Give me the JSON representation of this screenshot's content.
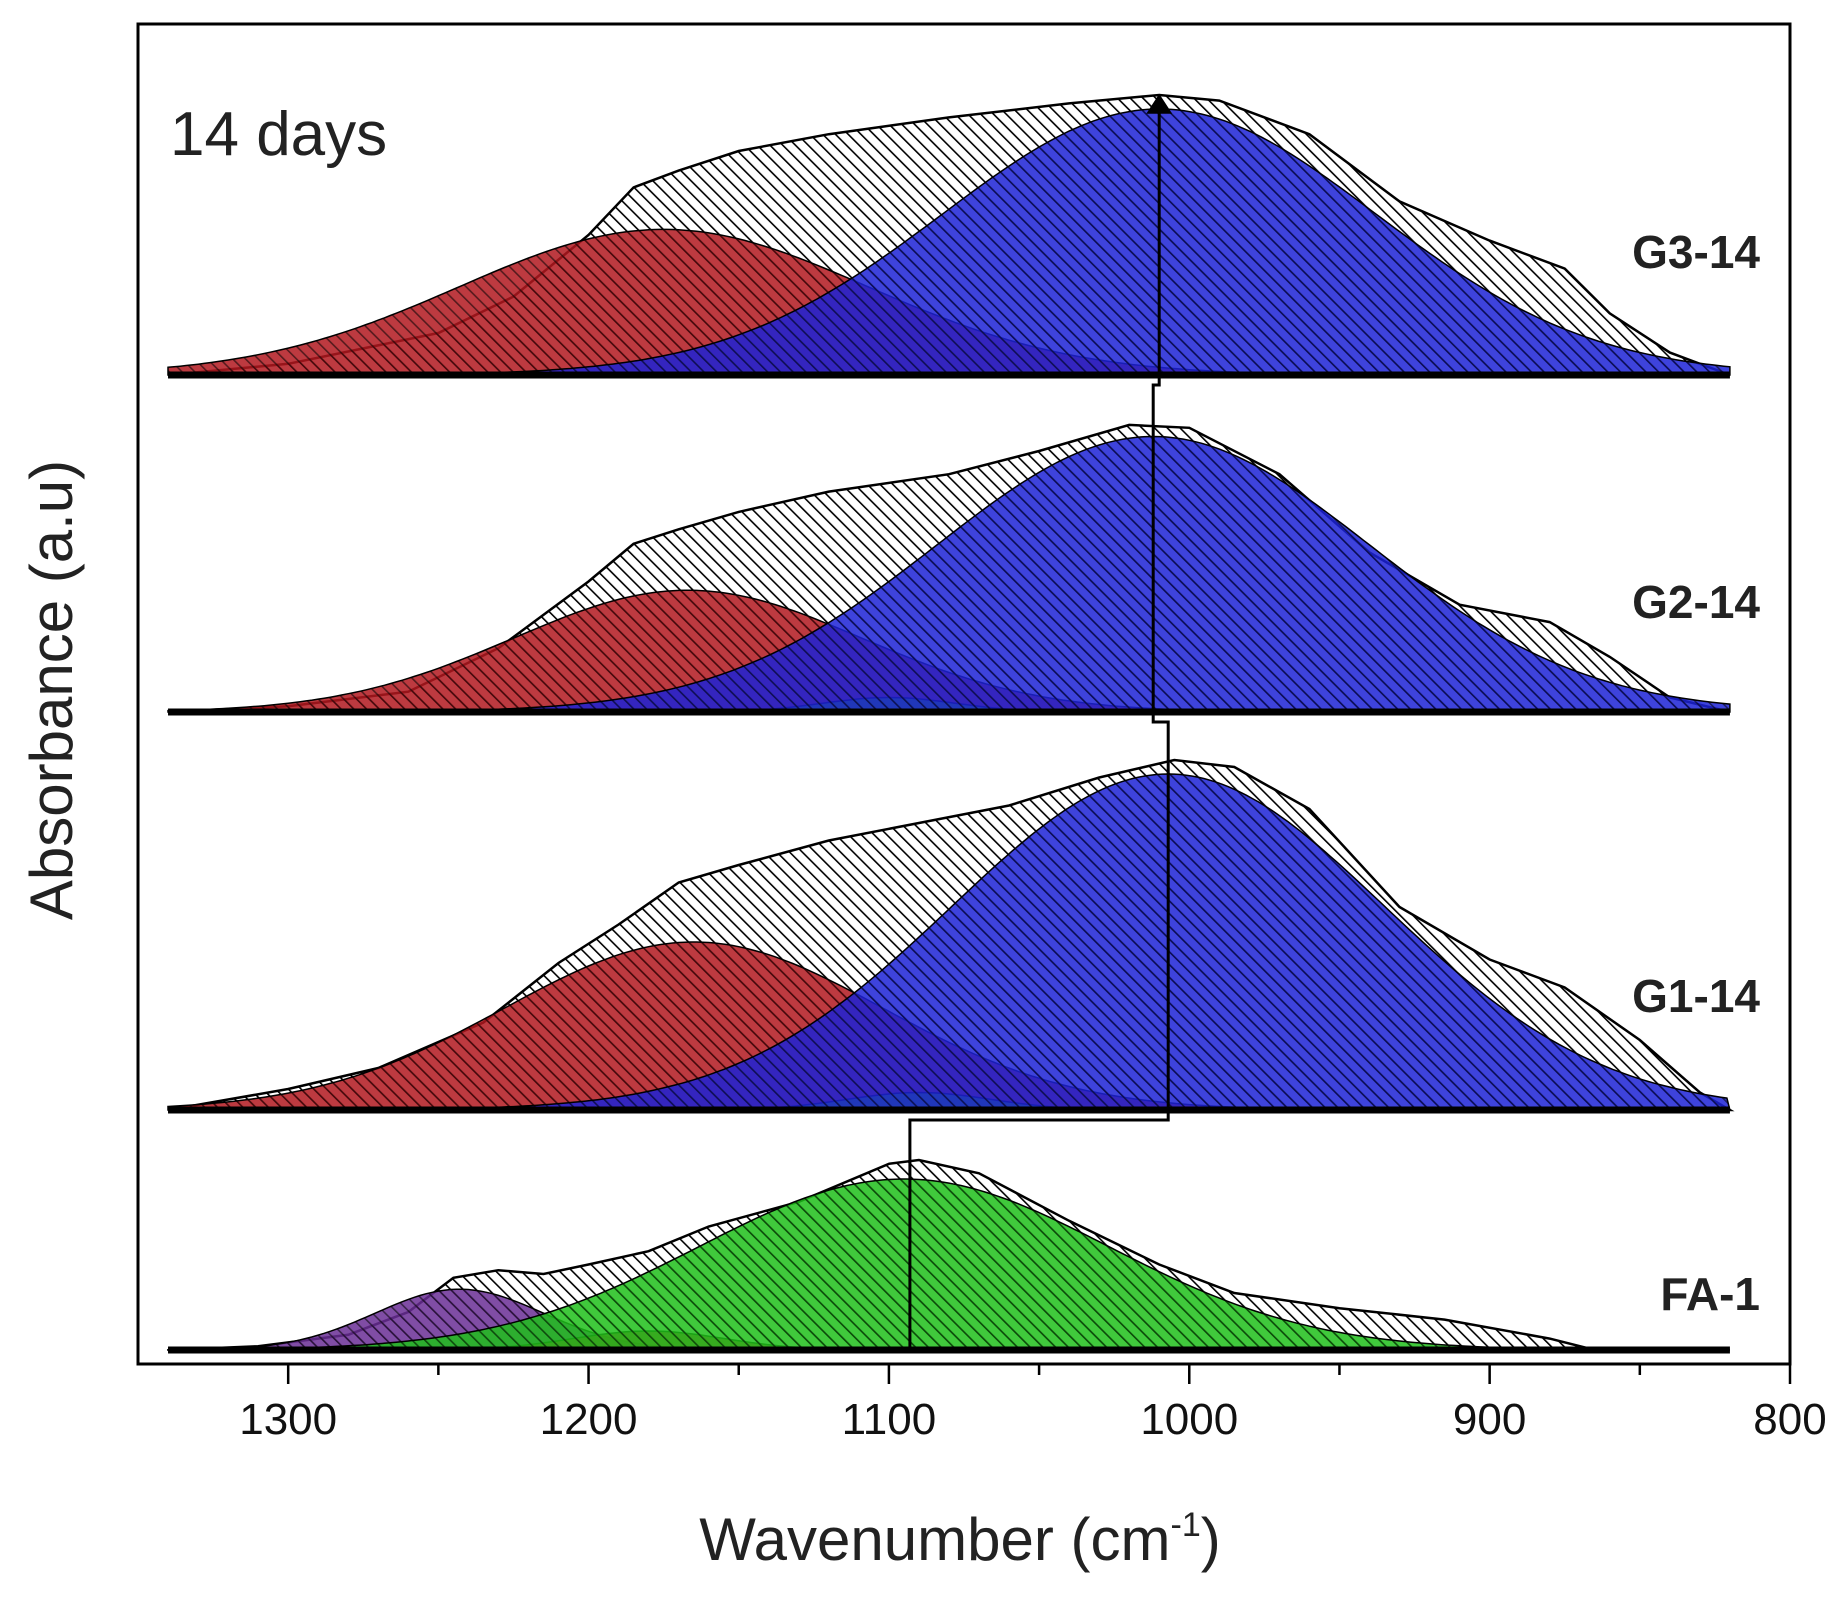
{
  "chart_data": {
    "type": "area",
    "title": "",
    "annotation": "14 days",
    "xlabel": "Wavenumber (cm",
    "xlabel_sup": "-1",
    "xlabel_close": ")",
    "ylabel": "Absorbance (a.u)",
    "xlim": [
      1350,
      800
    ],
    "x_reversed": true,
    "xticks": [
      {
        "value": 1300,
        "label": "1300"
      },
      {
        "value": 1200,
        "label": "1200"
      },
      {
        "value": 1100,
        "label": "1100"
      },
      {
        "value": 1000,
        "label": "1000"
      },
      {
        "value": 900,
        "label": "900"
      },
      {
        "value": 800,
        "label": "800"
      }
    ],
    "minor_xticks": [
      1250,
      1150,
      1050,
      950,
      850
    ],
    "grid": false,
    "series": [
      {
        "name": "G3-14",
        "label": "G3-14",
        "peak_position": 1010,
        "envelope": [
          [
            1340,
            0
          ],
          [
            1300,
            0.04
          ],
          [
            1250,
            0.15
          ],
          [
            1225,
            0.28
          ],
          [
            1200,
            0.5
          ],
          [
            1185,
            0.67
          ],
          [
            1170,
            0.73
          ],
          [
            1150,
            0.8
          ],
          [
            1120,
            0.86
          ],
          [
            1080,
            0.92
          ],
          [
            1040,
            0.97
          ],
          [
            1010,
            1.0
          ],
          [
            990,
            0.98
          ],
          [
            960,
            0.86
          ],
          [
            930,
            0.62
          ],
          [
            900,
            0.48
          ],
          [
            875,
            0.38
          ],
          [
            860,
            0.22
          ],
          [
            840,
            0.08
          ],
          [
            820,
            0.0
          ]
        ],
        "components": [
          {
            "name": "red",
            "color": "#b2171e",
            "center": 1175,
            "width": 68,
            "amplitude": 0.52
          },
          {
            "name": "blue",
            "color": "#1c22d6",
            "center": 1010,
            "width": 72,
            "amplitude": 0.95
          }
        ]
      },
      {
        "name": "G2-14",
        "label": "G2-14",
        "peak_position": 1012,
        "envelope": [
          [
            1340,
            0
          ],
          [
            1300,
            0.02
          ],
          [
            1260,
            0.07
          ],
          [
            1230,
            0.22
          ],
          [
            1200,
            0.45
          ],
          [
            1185,
            0.58
          ],
          [
            1170,
            0.63
          ],
          [
            1150,
            0.69
          ],
          [
            1120,
            0.76
          ],
          [
            1080,
            0.82
          ],
          [
            1050,
            0.9
          ],
          [
            1020,
            0.99
          ],
          [
            1000,
            0.98
          ],
          [
            970,
            0.82
          ],
          [
            940,
            0.55
          ],
          [
            910,
            0.37
          ],
          [
            880,
            0.31
          ],
          [
            860,
            0.19
          ],
          [
            840,
            0.05
          ],
          [
            820,
            0.0
          ]
        ],
        "components": [
          {
            "name": "red",
            "color": "#b2171e",
            "center": 1167,
            "width": 58,
            "amplitude": 0.42
          },
          {
            "name": "green",
            "color": "#1fbf1a",
            "center": 1100,
            "width": 22,
            "amplitude": 0.05
          },
          {
            "name": "blue",
            "color": "#1c22d6",
            "center": 1012,
            "width": 72,
            "amplitude": 0.95
          }
        ]
      },
      {
        "name": "G1-14",
        "label": "G1-14",
        "peak_position": 1007,
        "envelope": [
          [
            1340,
            0
          ],
          [
            1300,
            0.06
          ],
          [
            1270,
            0.12
          ],
          [
            1235,
            0.25
          ],
          [
            1210,
            0.42
          ],
          [
            1190,
            0.53
          ],
          [
            1170,
            0.65
          ],
          [
            1150,
            0.7
          ],
          [
            1120,
            0.77
          ],
          [
            1090,
            0.82
          ],
          [
            1060,
            0.87
          ],
          [
            1030,
            0.95
          ],
          [
            1005,
            1.0
          ],
          [
            985,
            0.98
          ],
          [
            960,
            0.86
          ],
          [
            930,
            0.58
          ],
          [
            900,
            0.43
          ],
          [
            875,
            0.35
          ],
          [
            850,
            0.2
          ],
          [
            830,
            0.05
          ],
          [
            820,
            0.0
          ]
        ],
        "components": [
          {
            "name": "red",
            "color": "#b2171e",
            "center": 1165,
            "width": 63,
            "amplitude": 0.48
          },
          {
            "name": "green",
            "color": "#1fbf1a",
            "center": 1090,
            "width": 24,
            "amplitude": 0.05
          },
          {
            "name": "blue",
            "color": "#1c22d6",
            "center": 1007,
            "width": 72,
            "amplitude": 0.96
          }
        ]
      },
      {
        "name": "FA-1",
        "label": "FA-1",
        "peak_position": 1093,
        "envelope": [
          [
            1340,
            0
          ],
          [
            1310,
            0.02
          ],
          [
            1280,
            0.08
          ],
          [
            1260,
            0.2
          ],
          [
            1245,
            0.38
          ],
          [
            1230,
            0.42
          ],
          [
            1215,
            0.4
          ],
          [
            1200,
            0.45
          ],
          [
            1180,
            0.52
          ],
          [
            1160,
            0.65
          ],
          [
            1130,
            0.78
          ],
          [
            1100,
            0.98
          ],
          [
            1090,
            1.0
          ],
          [
            1070,
            0.93
          ],
          [
            1040,
            0.68
          ],
          [
            1010,
            0.45
          ],
          [
            985,
            0.3
          ],
          [
            950,
            0.22
          ],
          [
            915,
            0.16
          ],
          [
            880,
            0.06
          ],
          [
            865,
            0.0
          ],
          [
            820,
            0.0
          ]
        ],
        "components": [
          {
            "name": "purple",
            "color": "#6a2e95",
            "center": 1243,
            "width": 28,
            "amplitude": 0.32
          },
          {
            "name": "red",
            "color": "#b2171e",
            "center": 1180,
            "width": 25,
            "amplitude": 0.1
          },
          {
            "name": "green",
            "color": "#1fbf1a",
            "center": 1095,
            "width": 68,
            "amplitude": 0.9
          }
        ]
      }
    ]
  }
}
